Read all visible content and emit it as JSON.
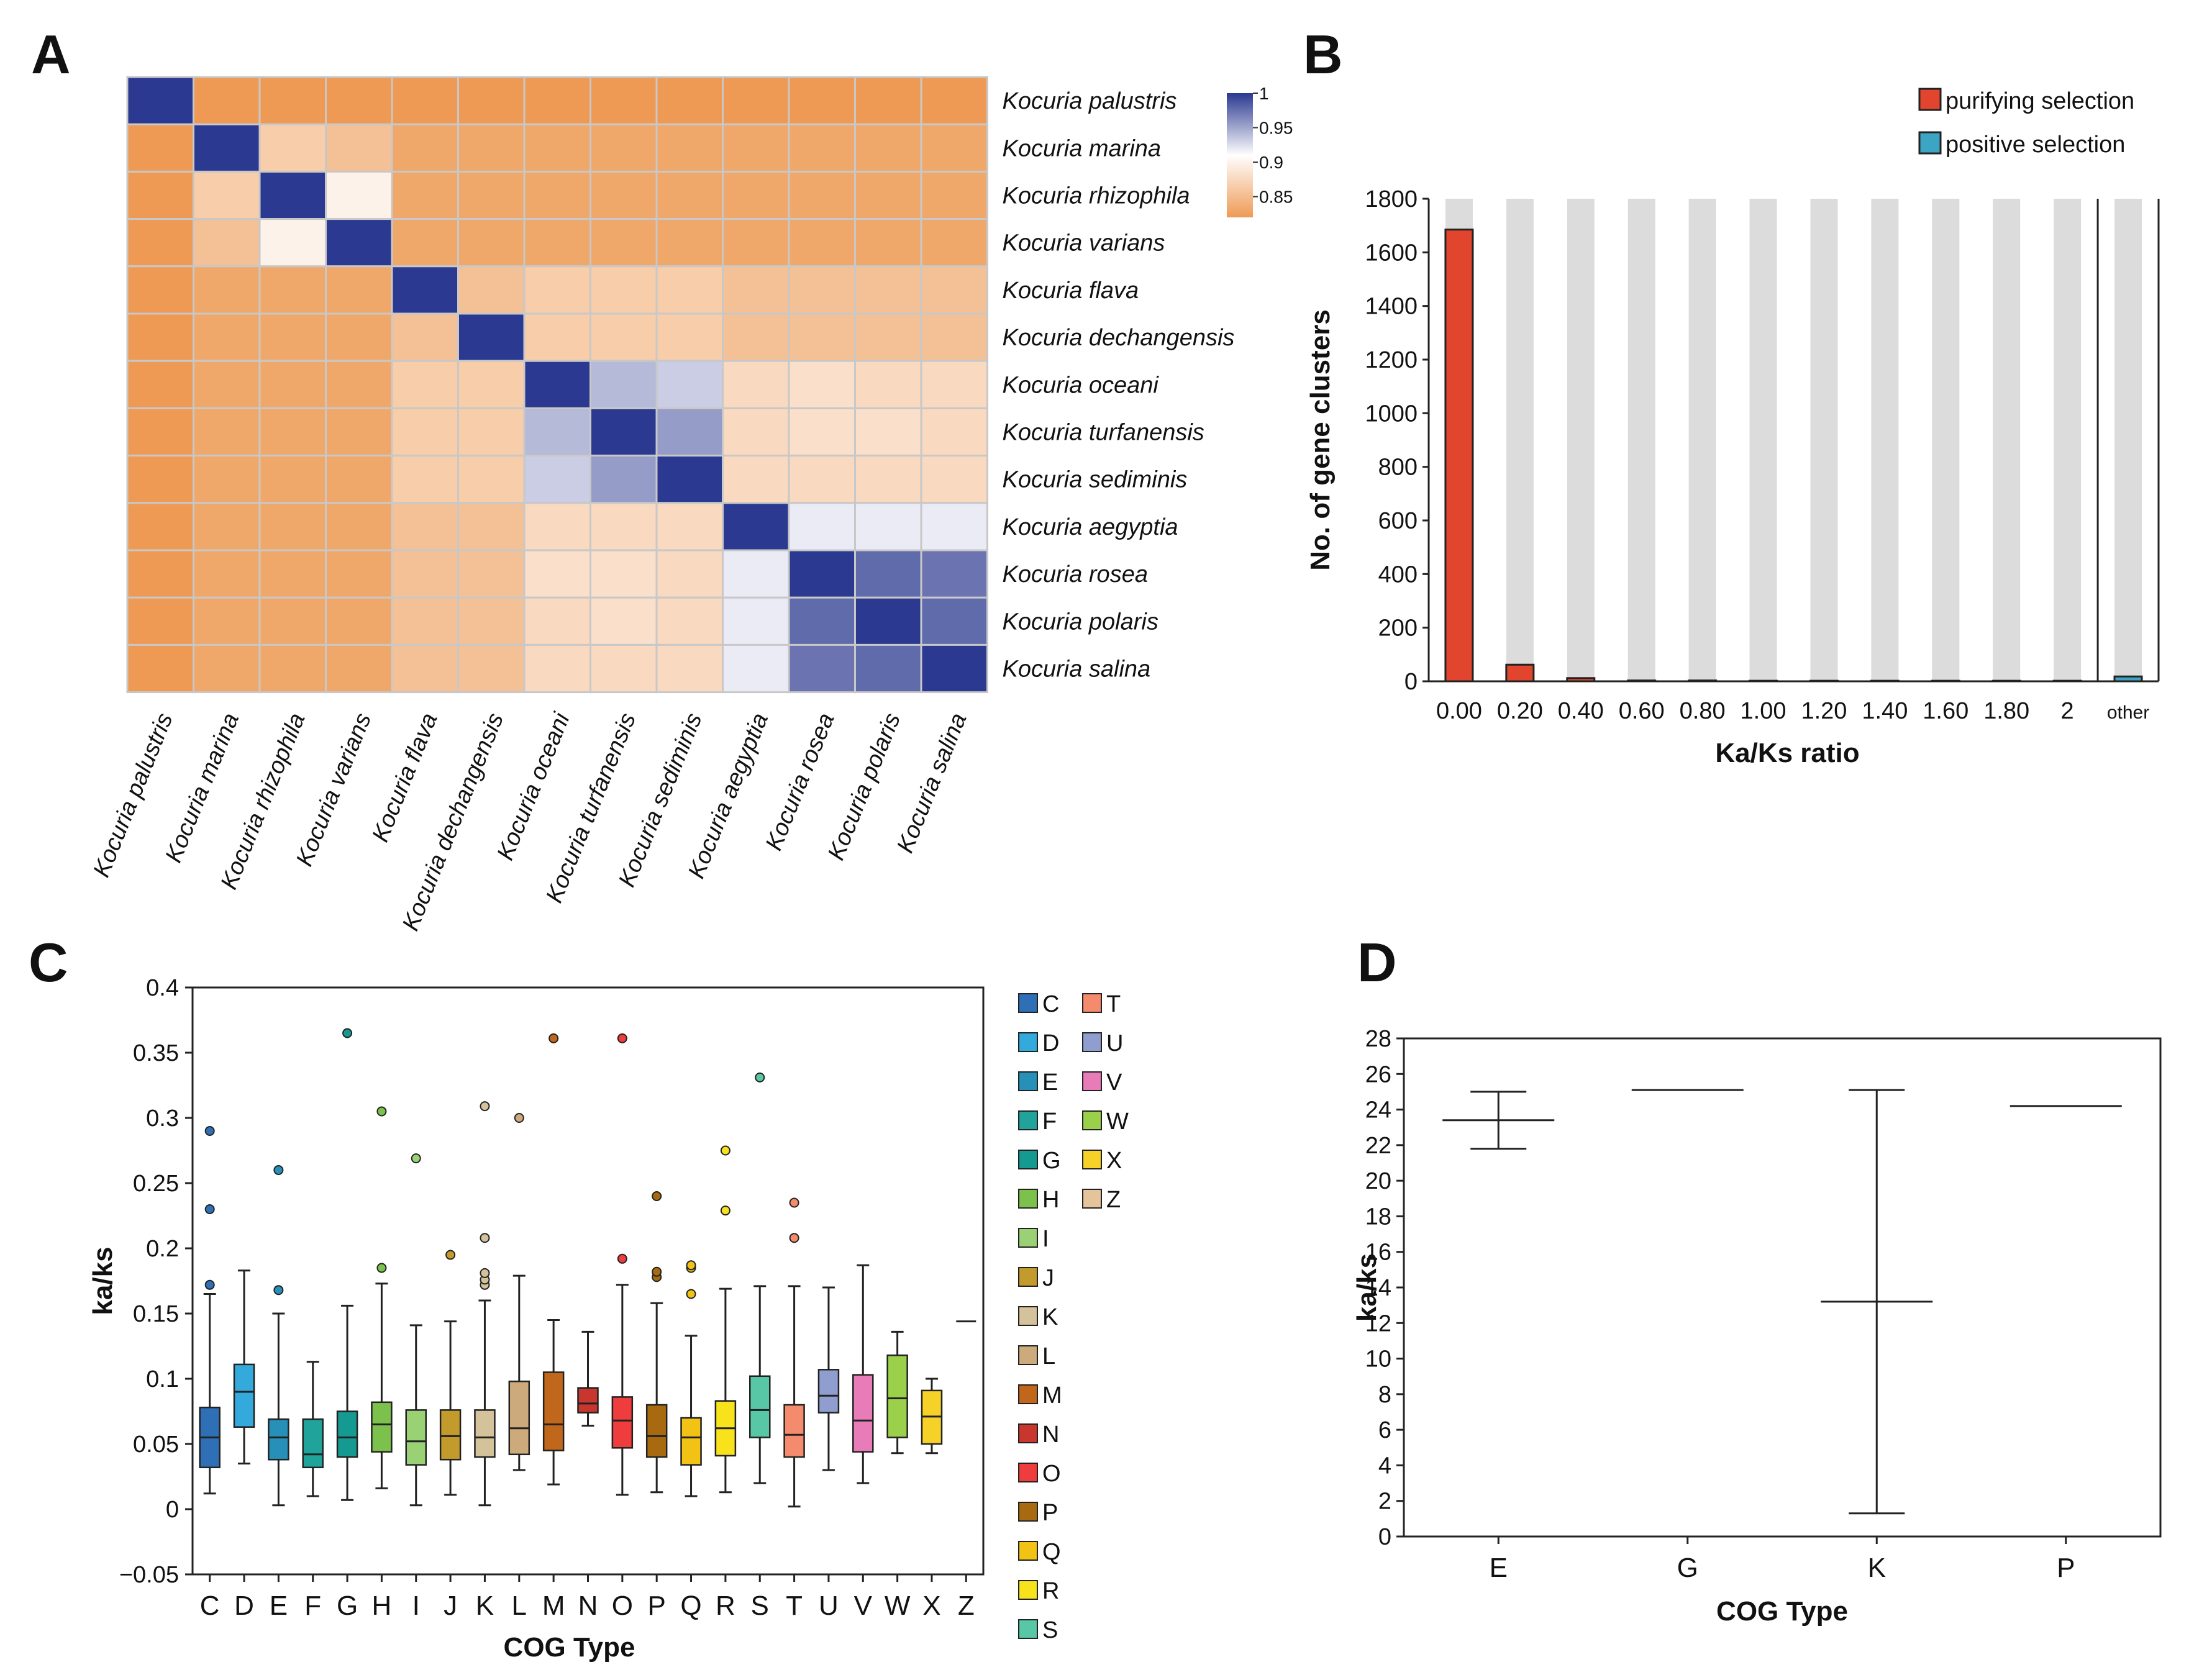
{
  "panels": {
    "A": "A",
    "B": "B",
    "C": "C",
    "D": "D"
  },
  "colors": {
    "high": "#2b3990",
    "mid": "#ffffff",
    "low": "#ee9a55",
    "purifying": "#e1452d",
    "positive": "#3da5c4",
    "background_bar": "#dcdcdc"
  },
  "chart_data": [
    {
      "panel": "A",
      "type": "heatmap",
      "title": "",
      "row_labels": [
        "Kocuria palustris",
        "Kocuria marina",
        "Kocuria rhizophila",
        "Kocuria varians",
        "Kocuria flava",
        "Kocuria dechangensis",
        "Kocuria oceani",
        "Kocuria turfanensis",
        "Kocuria sediminis",
        "Kocuria aegyptia",
        "Kocuria rosea",
        "Kocuria polaris",
        "Kocuria salina"
      ],
      "col_labels": [
        "Kocuria palustris",
        "Kocuria marina",
        "Kocuria rhizophila",
        "Kocuria varians",
        "Kocuria flava",
        "Kocuria dechangensis",
        "Kocuria oceani",
        "Kocuria turfanensis",
        "Kocuria sediminis",
        "Kocuria aegyptia",
        "Kocuria rosea",
        "Kocuria polaris",
        "Kocuria salina"
      ],
      "colorbar": {
        "min": 0.82,
        "max": 1,
        "ticks": [
          "1",
          "0.95",
          "0.9",
          "0.85"
        ],
        "tick_values": [
          1,
          0.95,
          0.9,
          0.85
        ]
      },
      "matrix": [
        [
          1.0,
          0.82,
          0.82,
          0.82,
          0.82,
          0.82,
          0.82,
          0.82,
          0.82,
          0.82,
          0.82,
          0.82,
          0.82
        ],
        [
          0.82,
          1.0,
          0.86,
          0.85,
          0.83,
          0.83,
          0.83,
          0.83,
          0.83,
          0.83,
          0.83,
          0.83,
          0.83
        ],
        [
          0.82,
          0.86,
          1.0,
          0.89,
          0.83,
          0.83,
          0.83,
          0.83,
          0.83,
          0.83,
          0.83,
          0.83,
          0.83
        ],
        [
          0.82,
          0.85,
          0.89,
          1.0,
          0.83,
          0.83,
          0.83,
          0.83,
          0.83,
          0.83,
          0.83,
          0.83,
          0.83
        ],
        [
          0.82,
          0.83,
          0.83,
          0.83,
          1.0,
          0.85,
          0.86,
          0.86,
          0.86,
          0.85,
          0.85,
          0.85,
          0.85
        ],
        [
          0.82,
          0.83,
          0.83,
          0.83,
          0.85,
          1.0,
          0.86,
          0.86,
          0.86,
          0.85,
          0.85,
          0.85,
          0.85
        ],
        [
          0.82,
          0.83,
          0.83,
          0.83,
          0.86,
          0.86,
          1.0,
          0.935,
          0.925,
          0.87,
          0.875,
          0.87,
          0.87
        ],
        [
          0.82,
          0.83,
          0.83,
          0.83,
          0.86,
          0.86,
          0.935,
          1.0,
          0.95,
          0.87,
          0.875,
          0.875,
          0.87
        ],
        [
          0.82,
          0.83,
          0.83,
          0.83,
          0.86,
          0.86,
          0.925,
          0.95,
          1.0,
          0.87,
          0.87,
          0.87,
          0.87
        ],
        [
          0.82,
          0.83,
          0.83,
          0.83,
          0.85,
          0.85,
          0.87,
          0.87,
          0.87,
          1.0,
          0.91,
          0.91,
          0.91
        ],
        [
          0.82,
          0.83,
          0.83,
          0.83,
          0.85,
          0.85,
          0.875,
          0.875,
          0.87,
          0.91,
          1.0,
          0.975,
          0.97
        ],
        [
          0.82,
          0.83,
          0.83,
          0.83,
          0.85,
          0.85,
          0.87,
          0.875,
          0.87,
          0.91,
          0.975,
          1.0,
          0.975
        ],
        [
          0.82,
          0.83,
          0.83,
          0.83,
          0.85,
          0.85,
          0.87,
          0.87,
          0.87,
          0.91,
          0.97,
          0.975,
          1.0
        ]
      ]
    },
    {
      "panel": "B",
      "type": "bar",
      "title": "",
      "xlabel": "Ka/Ks ratio",
      "ylabel": "No. of gene clusters",
      "ylim": [
        0,
        1800
      ],
      "yticks": [
        "0",
        "200",
        "400",
        "600",
        "800",
        "1000",
        "1200",
        "1400",
        "1600",
        "1800"
      ],
      "ytick_values": [
        0,
        200,
        400,
        600,
        800,
        1000,
        1200,
        1400,
        1600,
        1800
      ],
      "categories": [
        "0.00",
        "0.20",
        "0.40",
        "0.60",
        "0.80",
        "1.00",
        "1.20",
        "1.40",
        "1.60",
        "1.80",
        "2",
        "other"
      ],
      "series": [
        {
          "name": "purifying selection",
          "values": [
            1685,
            62,
            12,
            3,
            3,
            2,
            2,
            2,
            2,
            2,
            2,
            0
          ]
        },
        {
          "name": "positive selection",
          "values": [
            0,
            0,
            0,
            0,
            0,
            0,
            0,
            0,
            0,
            0,
            0,
            18
          ]
        }
      ],
      "background_max": 1800,
      "legend": [
        "purifying selection",
        "positive selection"
      ],
      "legend_position": "top-right"
    },
    {
      "panel": "C",
      "type": "box",
      "title": "",
      "xlabel": "COG Type",
      "ylabel": "ka/ks",
      "ylim": [
        -0.05,
        0.4
      ],
      "yticks": [
        "−0.05",
        "0",
        "0.05",
        "0.1",
        "0.15",
        "0.2",
        "0.25",
        "0.3",
        "0.35",
        "0.4"
      ],
      "ytick_values": [
        -0.05,
        0,
        0.05,
        0.1,
        0.15,
        0.2,
        0.25,
        0.3,
        0.35,
        0.4
      ],
      "categories": [
        "C",
        "D",
        "E",
        "F",
        "G",
        "H",
        "I",
        "J",
        "K",
        "L",
        "M",
        "N",
        "O",
        "P",
        "Q",
        "R",
        "S",
        "T",
        "U",
        "V",
        "W",
        "X",
        "Z"
      ],
      "boxes": [
        {
          "cat": "C",
          "color": "#2f6fb5",
          "min": 0.012,
          "q1": 0.032,
          "median": 0.055,
          "q3": 0.078,
          "max": 0.165,
          "outliers": [
            0.172,
            0.23,
            0.29
          ]
        },
        {
          "cat": "D",
          "color": "#33a9dc",
          "min": 0.035,
          "q1": 0.063,
          "median": 0.09,
          "q3": 0.111,
          "max": 0.183,
          "outliers": []
        },
        {
          "cat": "E",
          "color": "#2690b8",
          "min": 0.003,
          "q1": 0.038,
          "median": 0.055,
          "q3": 0.069,
          "max": 0.15,
          "outliers": [
            0.168,
            0.26
          ]
        },
        {
          "cat": "F",
          "color": "#1fa39a",
          "min": 0.01,
          "q1": 0.032,
          "median": 0.042,
          "q3": 0.069,
          "max": 0.113,
          "outliers": []
        },
        {
          "cat": "G",
          "color": "#159a92",
          "min": 0.007,
          "q1": 0.04,
          "median": 0.055,
          "q3": 0.075,
          "max": 0.156,
          "outliers": [
            0.365
          ]
        },
        {
          "cat": "H",
          "color": "#7cc14b",
          "min": 0.016,
          "q1": 0.044,
          "median": 0.065,
          "q3": 0.082,
          "max": 0.173,
          "outliers": [
            0.185,
            0.305
          ]
        },
        {
          "cat": "I",
          "color": "#9bd175",
          "min": 0.003,
          "q1": 0.034,
          "median": 0.052,
          "q3": 0.076,
          "max": 0.141,
          "outliers": [
            0.269
          ]
        },
        {
          "cat": "J",
          "color": "#c39a2c",
          "min": 0.011,
          "q1": 0.038,
          "median": 0.056,
          "q3": 0.076,
          "max": 0.144,
          "outliers": [
            0.195
          ]
        },
        {
          "cat": "K",
          "color": "#d4c39a",
          "min": 0.003,
          "q1": 0.04,
          "median": 0.055,
          "q3": 0.076,
          "max": 0.16,
          "outliers": [
            0.172,
            0.176,
            0.181,
            0.208,
            0.309
          ]
        },
        {
          "cat": "L",
          "color": "#cdaa7b",
          "min": 0.03,
          "q1": 0.042,
          "median": 0.062,
          "q3": 0.098,
          "max": 0.179,
          "outliers": [
            0.3
          ]
        },
        {
          "cat": "M",
          "color": "#c0671c",
          "min": 0.019,
          "q1": 0.045,
          "median": 0.065,
          "q3": 0.105,
          "max": 0.145,
          "outliers": [
            0.361
          ]
        },
        {
          "cat": "N",
          "color": "#c8362d",
          "min": 0.064,
          "q1": 0.074,
          "median": 0.081,
          "q3": 0.093,
          "max": 0.136,
          "outliers": []
        },
        {
          "cat": "O",
          "color": "#ef3c3c",
          "min": 0.011,
          "q1": 0.047,
          "median": 0.068,
          "q3": 0.086,
          "max": 0.172,
          "outliers": [
            0.192,
            0.361
          ]
        },
        {
          "cat": "P",
          "color": "#a86a10",
          "min": 0.013,
          "q1": 0.04,
          "median": 0.056,
          "q3": 0.08,
          "max": 0.158,
          "outliers": [
            0.178,
            0.182,
            0.24
          ]
        },
        {
          "cat": "Q",
          "color": "#f2c214",
          "min": 0.01,
          "q1": 0.034,
          "median": 0.055,
          "q3": 0.07,
          "max": 0.133,
          "outliers": [
            0.165,
            0.185,
            0.187
          ]
        },
        {
          "cat": "R",
          "color": "#f7e21b",
          "min": 0.013,
          "q1": 0.041,
          "median": 0.062,
          "q3": 0.083,
          "max": 0.169,
          "outliers": [
            0.229,
            0.275
          ]
        },
        {
          "cat": "S",
          "color": "#58c7a6",
          "min": 0.02,
          "q1": 0.055,
          "median": 0.076,
          "q3": 0.102,
          "max": 0.171,
          "outliers": [
            0.331
          ]
        },
        {
          "cat": "T",
          "color": "#f48b6d",
          "min": 0.002,
          "q1": 0.04,
          "median": 0.057,
          "q3": 0.08,
          "max": 0.171,
          "outliers": [
            0.208,
            0.235
          ]
        },
        {
          "cat": "U",
          "color": "#8f9ecf",
          "min": 0.03,
          "q1": 0.074,
          "median": 0.087,
          "q3": 0.107,
          "max": 0.17,
          "outliers": []
        },
        {
          "cat": "V",
          "color": "#e77cb8",
          "min": 0.02,
          "q1": 0.044,
          "median": 0.068,
          "q3": 0.103,
          "max": 0.187,
          "outliers": []
        },
        {
          "cat": "W",
          "color": "#9bd04a",
          "min": 0.043,
          "q1": 0.055,
          "median": 0.085,
          "q3": 0.118,
          "max": 0.136,
          "outliers": []
        },
        {
          "cat": "X",
          "color": "#f6d128",
          "min": 0.043,
          "q1": 0.05,
          "median": 0.071,
          "q3": 0.091,
          "max": 0.1,
          "outliers": []
        },
        {
          "cat": "Z",
          "color": "#e5c49b",
          "min": 0.144,
          "q1": 0.144,
          "median": 0.144,
          "q3": 0.144,
          "max": 0.144,
          "outliers": []
        }
      ],
      "legend": [
        {
          "label": "C",
          "color": "#2f6fb5"
        },
        {
          "label": "D",
          "color": "#33a9dc"
        },
        {
          "label": "E",
          "color": "#2690b8"
        },
        {
          "label": "F",
          "color": "#1fa39a"
        },
        {
          "label": "G",
          "color": "#159a92"
        },
        {
          "label": "H",
          "color": "#7cc14b"
        },
        {
          "label": "I",
          "color": "#9bd175"
        },
        {
          "label": "J",
          "color": "#c39a2c"
        },
        {
          "label": "K",
          "color": "#d4c39a"
        },
        {
          "label": "L",
          "color": "#cdaa7b"
        },
        {
          "label": "M",
          "color": "#c0671c"
        },
        {
          "label": "N",
          "color": "#c8362d"
        },
        {
          "label": "O",
          "color": "#ef3c3c"
        },
        {
          "label": "P",
          "color": "#a86a10"
        },
        {
          "label": "Q",
          "color": "#f2c214"
        },
        {
          "label": "R",
          "color": "#f7e21b"
        },
        {
          "label": "S",
          "color": "#58c7a6"
        },
        {
          "label": "T",
          "color": "#f48b6d"
        },
        {
          "label": "U",
          "color": "#8f9ecf"
        },
        {
          "label": "V",
          "color": "#e77cb8"
        },
        {
          "label": "W",
          "color": "#9bd04a"
        },
        {
          "label": "X",
          "color": "#f6d128"
        },
        {
          "label": "Z",
          "color": "#e5c49b"
        }
      ]
    },
    {
      "panel": "D",
      "type": "errorbar",
      "title": "",
      "xlabel": "COG Type",
      "ylabel": "ka/ks",
      "ylim": [
        0,
        28
      ],
      "yticks": [
        "0",
        "2",
        "4",
        "6",
        "8",
        "10",
        "12",
        "14",
        "16",
        "18",
        "20",
        "22",
        "24",
        "26",
        "28"
      ],
      "ytick_values": [
        0,
        2,
        4,
        6,
        8,
        10,
        12,
        14,
        16,
        18,
        20,
        22,
        24,
        26,
        28
      ],
      "categories": [
        "E",
        "G",
        "K",
        "P"
      ],
      "points": [
        {
          "cat": "E",
          "mean": 23.4,
          "low": 21.8,
          "high": 25.0
        },
        {
          "cat": "G",
          "mean": 25.1,
          "low": 25.1,
          "high": 25.1
        },
        {
          "cat": "K",
          "mean": 13.2,
          "low": 1.3,
          "high": 25.1
        },
        {
          "cat": "P",
          "mean": 24.2,
          "low": 24.2,
          "high": 24.2
        }
      ]
    }
  ]
}
